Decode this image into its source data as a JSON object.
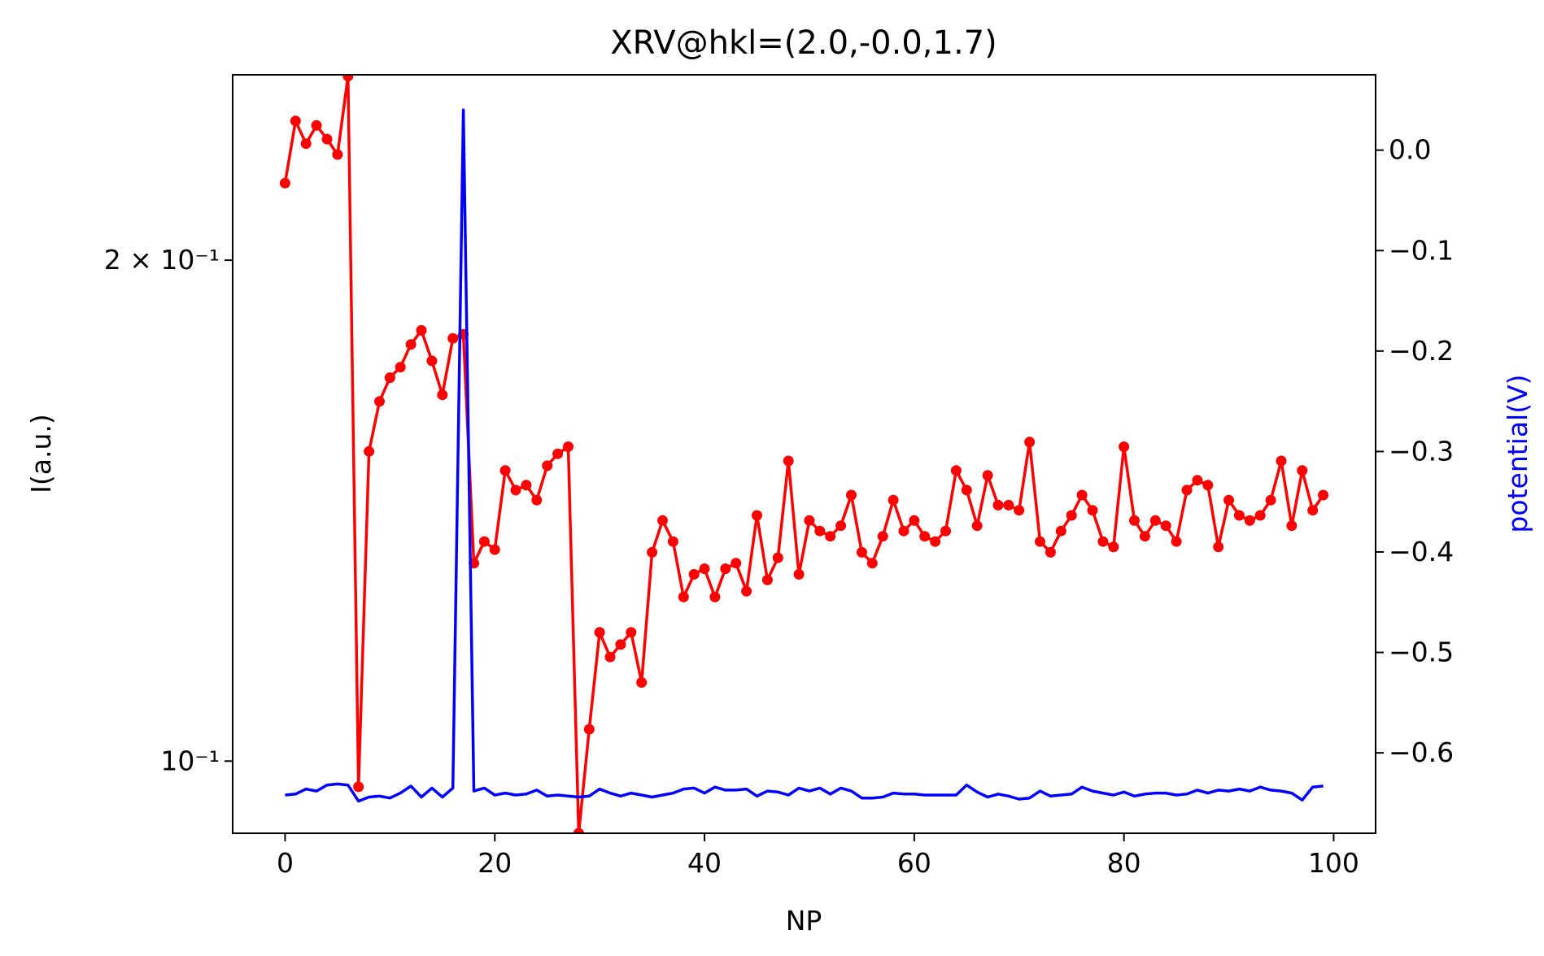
{
  "chart_data": {
    "type": "line",
    "title": "XRV@hkl=(2.0,-0.0,1.7)",
    "xlabel": "NP",
    "ylabel_left": "I(a.u.)",
    "ylabel_right": "potential(V)",
    "xlim": [
      -5,
      104
    ],
    "ylim_left": [
      0.0905,
      0.2585
    ],
    "yscale_left": "log",
    "ylim_right": [
      -0.68,
      0.075
    ],
    "x_ticks": [
      "0",
      "20",
      "40",
      "60",
      "80",
      "100"
    ],
    "y_left_ticks": [
      {
        "value": 0.2,
        "label": "2 × 10⁻¹"
      },
      {
        "value": 0.1,
        "label": "10⁻¹"
      }
    ],
    "y_right_ticks": [
      "0.0",
      "−0.1",
      "−0.2",
      "−0.3",
      "−0.4",
      "−0.5",
      "−0.6"
    ],
    "colors": {
      "intensity": "#ff0000",
      "potential": "#0000ff"
    },
    "grid": false,
    "series": [
      {
        "axis": "left",
        "color": "#ff0000",
        "marker": "dot",
        "x": [
          0,
          1,
          2,
          3,
          4,
          5,
          6,
          7,
          8,
          9,
          10,
          11,
          12,
          13,
          14,
          15,
          16,
          17,
          18,
          19,
          20,
          21,
          22,
          23,
          24,
          25,
          26,
          27,
          28,
          29,
          30,
          31,
          32,
          33,
          34,
          35,
          36,
          37,
          38,
          39,
          40,
          41,
          42,
          43,
          44,
          45,
          46,
          47,
          48,
          49,
          50,
          51,
          52,
          53,
          54,
          55,
          56,
          57,
          58,
          59,
          60,
          61,
          62,
          63,
          64,
          65,
          66,
          67,
          68,
          69,
          70,
          71,
          72,
          73,
          74,
          75,
          76,
          77,
          78,
          79,
          80,
          81,
          82,
          83,
          84,
          85,
          86,
          87,
          88,
          89,
          90,
          91,
          92,
          93,
          94,
          95,
          96,
          97,
          98,
          99
        ],
        "values": [
          0.2225,
          0.2425,
          0.235,
          0.241,
          0.2365,
          0.2315,
          0.258,
          0.0965,
          0.1535,
          0.1645,
          0.17,
          0.1725,
          0.178,
          0.1815,
          0.174,
          0.166,
          0.1795,
          0.1805,
          0.1315,
          0.1355,
          0.134,
          0.1495,
          0.1455,
          0.1465,
          0.1435,
          0.1505,
          0.153,
          0.1545,
          0.0905,
          0.1045,
          0.1195,
          0.1155,
          0.1175,
          0.1195,
          0.1115,
          0.1335,
          0.1395,
          0.1355,
          0.1255,
          0.1295,
          0.1305,
          0.1255,
          0.1305,
          0.1315,
          0.1265,
          0.1405,
          0.1285,
          0.1325,
          0.1515,
          0.1295,
          0.1395,
          0.1375,
          0.1365,
          0.1385,
          0.1445,
          0.1335,
          0.1315,
          0.1365,
          0.1435,
          0.1375,
          0.1395,
          0.1365,
          0.1355,
          0.1375,
          0.1495,
          0.1455,
          0.1385,
          0.1485,
          0.1425,
          0.1425,
          0.1415,
          0.1555,
          0.1355,
          0.1335,
          0.1375,
          0.1405,
          0.1445,
          0.1415,
          0.1355,
          0.1345,
          0.1545,
          0.1395,
          0.1365,
          0.1395,
          0.1385,
          0.1355,
          0.1455,
          0.1475,
          0.1465,
          0.1345,
          0.1435,
          0.1405,
          0.1395,
          0.1405,
          0.1435,
          0.1515,
          0.1385,
          0.1495,
          0.1415,
          0.1445
        ]
      },
      {
        "axis": "right",
        "color": "#0000ff",
        "marker": "none",
        "x": [
          0,
          1,
          2,
          3,
          4,
          5,
          6,
          7,
          8,
          9,
          10,
          11,
          12,
          13,
          14,
          15,
          16,
          17,
          18,
          19,
          20,
          21,
          22,
          23,
          24,
          25,
          26,
          27,
          28,
          29,
          30,
          31,
          32,
          33,
          34,
          35,
          36,
          37,
          38,
          39,
          40,
          41,
          42,
          43,
          44,
          45,
          46,
          47,
          48,
          49,
          50,
          51,
          52,
          53,
          54,
          55,
          56,
          57,
          58,
          59,
          60,
          61,
          62,
          63,
          64,
          65,
          66,
          67,
          68,
          69,
          70,
          71,
          72,
          73,
          74,
          75,
          76,
          77,
          78,
          79,
          80,
          81,
          82,
          83,
          84,
          85,
          86,
          87,
          88,
          89,
          90,
          91,
          92,
          93,
          94,
          95,
          96,
          97,
          98,
          99
        ],
        "values": [
          -0.642,
          -0.641,
          -0.636,
          -0.638,
          -0.632,
          -0.631,
          -0.632,
          -0.648,
          -0.644,
          -0.643,
          -0.645,
          -0.64,
          -0.633,
          -0.644,
          -0.635,
          -0.644,
          -0.635,
          0.04,
          -0.638,
          -0.635,
          -0.642,
          -0.64,
          -0.642,
          -0.641,
          -0.637,
          -0.643,
          -0.642,
          -0.643,
          -0.644,
          -0.643,
          -0.636,
          -0.64,
          -0.643,
          -0.64,
          -0.642,
          -0.644,
          -0.642,
          -0.64,
          -0.636,
          -0.635,
          -0.64,
          -0.634,
          -0.637,
          -0.637,
          -0.636,
          -0.643,
          -0.638,
          -0.639,
          -0.642,
          -0.635,
          -0.638,
          -0.635,
          -0.641,
          -0.635,
          -0.638,
          -0.645,
          -0.645,
          -0.644,
          -0.64,
          -0.641,
          -0.641,
          -0.642,
          -0.642,
          -0.642,
          -0.642,
          -0.632,
          -0.639,
          -0.644,
          -0.641,
          -0.643,
          -0.646,
          -0.645,
          -0.638,
          -0.643,
          -0.642,
          -0.641,
          -0.634,
          -0.638,
          -0.64,
          -0.642,
          -0.639,
          -0.643,
          -0.641,
          -0.64,
          -0.64,
          -0.642,
          -0.641,
          -0.637,
          -0.64,
          -0.637,
          -0.638,
          -0.636,
          -0.638,
          -0.634,
          -0.637,
          -0.638,
          -0.64,
          -0.647,
          -0.634,
          -0.633
        ]
      }
    ]
  }
}
